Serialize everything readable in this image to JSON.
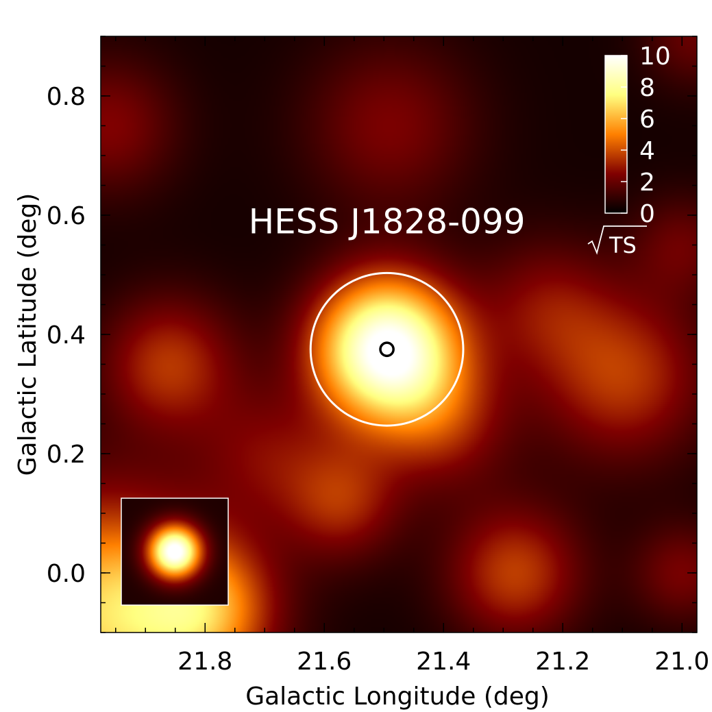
{
  "chart_data": {
    "type": "heatmap",
    "title": "",
    "xlabel": "Galactic Longitude (deg)",
    "ylabel": "Galactic Latitude (deg)",
    "xlim": [
      21.975,
      20.975
    ],
    "ylim": [
      -0.1,
      0.9
    ],
    "x_ticks": [
      21.8,
      21.6,
      21.4,
      21.2,
      21.0
    ],
    "x_tick_labels": [
      "21.8",
      "21.6",
      "21.4",
      "21.2",
      "21.0"
    ],
    "y_ticks": [
      0.0,
      0.2,
      0.4,
      0.6,
      0.8
    ],
    "y_tick_labels": [
      "0.0",
      "0.2",
      "0.4",
      "0.6",
      "0.8"
    ],
    "grid": false,
    "colormap": "afmhot",
    "colorbar": {
      "title": "√TS",
      "range": [
        0,
        10
      ],
      "ticks": [
        0,
        2,
        4,
        6,
        8,
        10
      ],
      "tick_labels": [
        "0",
        "2",
        "4",
        "6",
        "8",
        "10"
      ],
      "placement": "top-right inset"
    },
    "sources": [
      {
        "l": 21.495,
        "b": 0.375,
        "peak": 10.0,
        "sigma": 0.085
      }
    ],
    "background_blobs": [
      {
        "l": 21.97,
        "b": -0.07,
        "peak": 6.2,
        "sigma": 0.14
      },
      {
        "l": 21.8,
        "b": -0.06,
        "peak": 4.0,
        "sigma": 0.08
      },
      {
        "l": 21.86,
        "b": 0.35,
        "peak": 3.1,
        "sigma": 0.08
      },
      {
        "l": 21.28,
        "b": 0.0,
        "peak": 3.3,
        "sigma": 0.08
      },
      {
        "l": 21.1,
        "b": 0.33,
        "peak": 3.2,
        "sigma": 0.1
      },
      {
        "l": 21.57,
        "b": 0.12,
        "peak": 2.8,
        "sigma": 0.07
      },
      {
        "l": 21.49,
        "b": 0.75,
        "peak": 2.0,
        "sigma": 0.1
      },
      {
        "l": 21.96,
        "b": 0.75,
        "peak": 2.1,
        "sigma": 0.08
      },
      {
        "l": 21.23,
        "b": 0.45,
        "peak": 1.9,
        "sigma": 0.08
      },
      {
        "l": 20.98,
        "b": 0.9,
        "peak": 1.6,
        "sigma": 0.06
      },
      {
        "l": 21.0,
        "b": 0.55,
        "peak": 1.6,
        "sigma": 0.06
      },
      {
        "l": 21.0,
        "b": 0.0,
        "peak": 1.9,
        "sigma": 0.06
      },
      {
        "l": 21.4,
        "b": 0.25,
        "peak": 2.4,
        "sigma": 0.08
      },
      {
        "l": 21.7,
        "b": 0.2,
        "peak": 1.8,
        "sigma": 0.08
      }
    ],
    "psf_inset": {
      "placement": "bottom-left",
      "peak": 10.0
    },
    "annotations": [
      {
        "text": "HESS J1828-099",
        "l": 21.495,
        "b": 0.59,
        "color": "#ffffff"
      }
    ],
    "markers": [
      {
        "kind": "circle",
        "l": 21.495,
        "b": 0.375,
        "radius_deg": 0.128,
        "color": "#ffffff"
      },
      {
        "kind": "circle",
        "l": 21.495,
        "b": 0.375,
        "radius_deg": 0.011,
        "color": "#000000"
      }
    ]
  }
}
